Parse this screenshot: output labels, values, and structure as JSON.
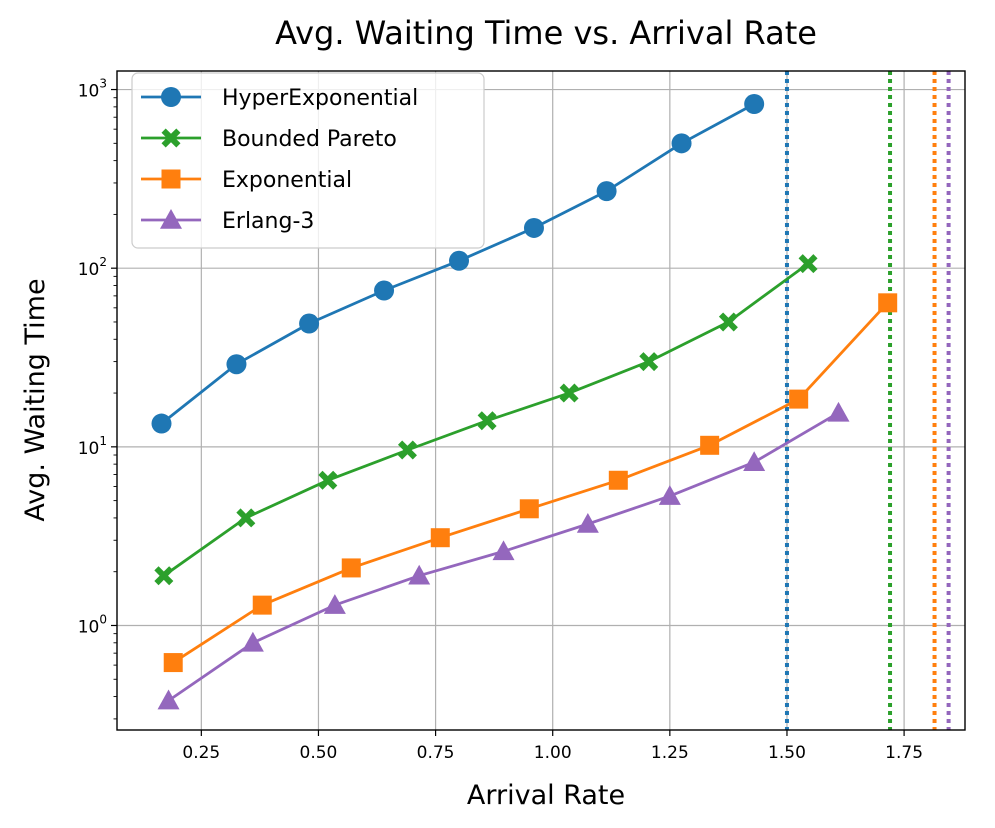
{
  "chart_data": {
    "type": "line",
    "title": "Avg. Waiting Time vs. Arrival Rate",
    "xlabel": "Arrival Rate",
    "ylabel": "Avg. Waiting Time",
    "xscale": "linear",
    "yscale": "log",
    "xlim": [
      0.07,
      1.88
    ],
    "ylim": [
      0.26,
      1270
    ],
    "grid": true,
    "legend_position": "upper-left",
    "x_ticks": [
      {
        "value": 0.25,
        "label": "0.25"
      },
      {
        "value": 0.5,
        "label": "0.50"
      },
      {
        "value": 0.75,
        "label": "0.75"
      },
      {
        "value": 1.0,
        "label": "1.00"
      },
      {
        "value": 1.25,
        "label": "1.25"
      },
      {
        "value": 1.5,
        "label": "1.50"
      },
      {
        "value": 1.75,
        "label": "1.75"
      }
    ],
    "y_ticks": [
      {
        "value": 1,
        "base": "10",
        "exp": "0"
      },
      {
        "value": 10,
        "base": "10",
        "exp": "1"
      },
      {
        "value": 100,
        "base": "10",
        "exp": "2"
      },
      {
        "value": 1000,
        "base": "10",
        "exp": "3"
      }
    ],
    "series": [
      {
        "name": "HyperExponential",
        "color": "#1f77b4",
        "marker": "circle",
        "x": [
          0.165,
          0.325,
          0.48,
          0.64,
          0.8,
          0.96,
          1.115,
          1.275,
          1.43
        ],
        "y": [
          13.5,
          29,
          49,
          75,
          110,
          168,
          270,
          500,
          830
        ]
      },
      {
        "name": "Bounded Pareto",
        "color": "#2ca02c",
        "marker": "x-filled",
        "x": [
          0.17,
          0.345,
          0.52,
          0.69,
          0.86,
          1.035,
          1.205,
          1.375,
          1.545
        ],
        "y": [
          1.9,
          4.0,
          6.5,
          9.6,
          14,
          20,
          30,
          50,
          106
        ]
      },
      {
        "name": "Exponential",
        "color": "#ff7f0e",
        "marker": "square",
        "x": [
          0.19,
          0.38,
          0.57,
          0.76,
          0.95,
          1.14,
          1.335,
          1.525,
          1.715
        ],
        "y": [
          0.62,
          1.3,
          2.1,
          3.1,
          4.5,
          6.5,
          10.2,
          18.5,
          64
        ]
      },
      {
        "name": "Erlang-3",
        "color": "#9467bd",
        "marker": "triangle",
        "x": [
          0.18,
          0.36,
          0.535,
          0.715,
          0.895,
          1.075,
          1.25,
          1.43,
          1.61
        ],
        "y": [
          0.38,
          0.8,
          1.3,
          1.9,
          2.6,
          3.7,
          5.3,
          8.2,
          15.5
        ]
      }
    ],
    "vertical_lines": [
      {
        "x": 1.5,
        "color": "#1f77b4",
        "style": "dotted",
        "series": "HyperExponential"
      },
      {
        "x": 1.72,
        "color": "#2ca02c",
        "style": "dotted",
        "series": "Bounded Pareto"
      },
      {
        "x": 1.815,
        "color": "#ff7f0e",
        "style": "dotted",
        "series": "Exponential"
      },
      {
        "x": 1.845,
        "color": "#9467bd",
        "style": "dotted",
        "series": "Erlang-3"
      }
    ]
  }
}
